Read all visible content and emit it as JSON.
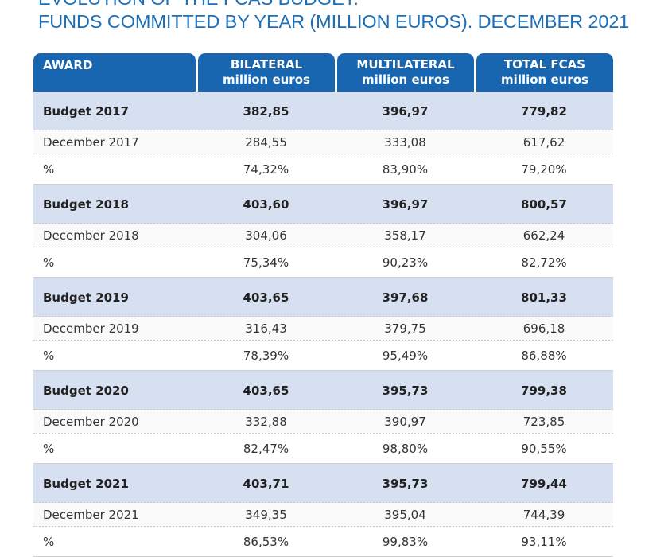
{
  "title": {
    "line1": "EVOLUTION OF THE FCAS BUDGET.",
    "line2": "FUNDS COMMITTED BY YEAR (MILLION EUROS). DECEMBER 2021"
  },
  "table": {
    "headers": [
      {
        "line1": "AWARD",
        "line2": ""
      },
      {
        "line1": "BILATERAL",
        "line2": "million euros"
      },
      {
        "line1": "MULTILATERAL",
        "line2": "million euros"
      },
      {
        "line1": "TOTAL FCAS",
        "line2": "million euros"
      }
    ],
    "rows": [
      {
        "kind": "budget",
        "cells": [
          "Budget 2017",
          "382,85",
          "396,97",
          "779,82"
        ]
      },
      {
        "kind": "dec",
        "cells": [
          "December 2017",
          "284,55",
          "333,08",
          "617,62"
        ]
      },
      {
        "kind": "pct",
        "cells": [
          "%",
          "74,32%",
          "83,90%",
          "79,20%"
        ]
      },
      {
        "kind": "budget",
        "cells": [
          "Budget 2018",
          "403,60",
          "396,97",
          "800,57"
        ]
      },
      {
        "kind": "dec",
        "cells": [
          "December 2018",
          "304,06",
          "358,17",
          "662,24"
        ]
      },
      {
        "kind": "pct",
        "cells": [
          "%",
          "75,34%",
          "90,23%",
          "82,72%"
        ]
      },
      {
        "kind": "budget",
        "cells": [
          "Budget 2019",
          "403,65",
          "397,68",
          "801,33"
        ]
      },
      {
        "kind": "dec",
        "cells": [
          "December 2019",
          "316,43",
          "379,75",
          "696,18"
        ]
      },
      {
        "kind": "pct",
        "cells": [
          "%",
          "78,39%",
          "95,49%",
          "86,88%"
        ]
      },
      {
        "kind": "budget",
        "cells": [
          "Budget 2020",
          "403,65",
          "395,73",
          "799,38"
        ]
      },
      {
        "kind": "dec",
        "cells": [
          "December 2020",
          "332,88",
          "390,97",
          "723,85"
        ]
      },
      {
        "kind": "pct",
        "cells": [
          "%",
          "82,47%",
          "98,80%",
          "90,55%"
        ]
      },
      {
        "kind": "budget",
        "cells": [
          "Budget 2021",
          "403,71",
          "395,73",
          "799,44"
        ]
      },
      {
        "kind": "dec",
        "cells": [
          "December 2021",
          "349,35",
          "395,04",
          "744,39"
        ]
      },
      {
        "kind": "pct",
        "cells": [
          "%",
          "86,53%",
          "99,83%",
          "93,11%"
        ]
      }
    ]
  },
  "colors": {
    "title": "#1b6fb8",
    "header_bg": "#1866b0",
    "budget_row_bg": "#d7e0f0"
  }
}
